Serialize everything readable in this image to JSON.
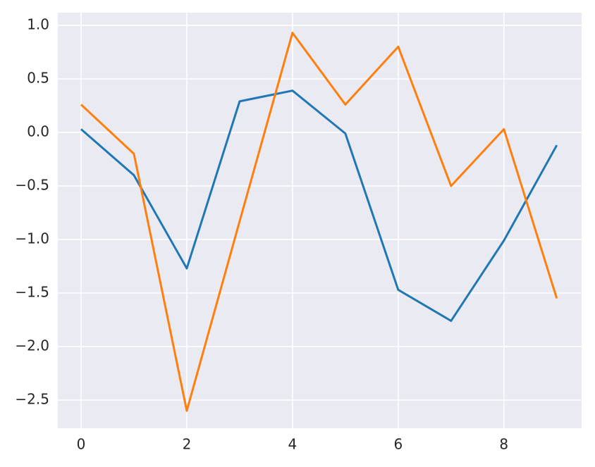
{
  "chart_data": {
    "type": "line",
    "x": [
      0,
      1,
      2,
      3,
      4,
      5,
      6,
      7,
      8,
      9
    ],
    "series": [
      {
        "color": "#1f77b4",
        "values": [
          0.03,
          -0.4,
          -1.27,
          0.29,
          0.39,
          -0.01,
          -1.47,
          -1.76,
          -1.01,
          -0.12
        ]
      },
      {
        "color": "#ff7f0e",
        "values": [
          0.26,
          -0.2,
          -2.6,
          -0.83,
          0.93,
          0.26,
          0.8,
          -0.5,
          0.03,
          -1.55
        ]
      }
    ],
    "xlim": [
      -0.44,
      9.47
    ],
    "xticks": [
      0,
      2,
      4,
      6,
      8
    ],
    "ylim": [
      -2.763,
      1.118
    ],
    "yticks": [
      {
        "value": -2.5,
        "label": "−2.5"
      },
      {
        "value": -2.0,
        "label": "−2.0"
      },
      {
        "value": -1.5,
        "label": "−1.5"
      },
      {
        "value": -1.0,
        "label": "−1.0"
      },
      {
        "value": -0.5,
        "label": "−0.5"
      },
      {
        "value": 0.0,
        "label": "0.0"
      },
      0.5,
      {
        "value": 1.0,
        "label": "1.0"
      }
    ],
    "grid": true
  }
}
